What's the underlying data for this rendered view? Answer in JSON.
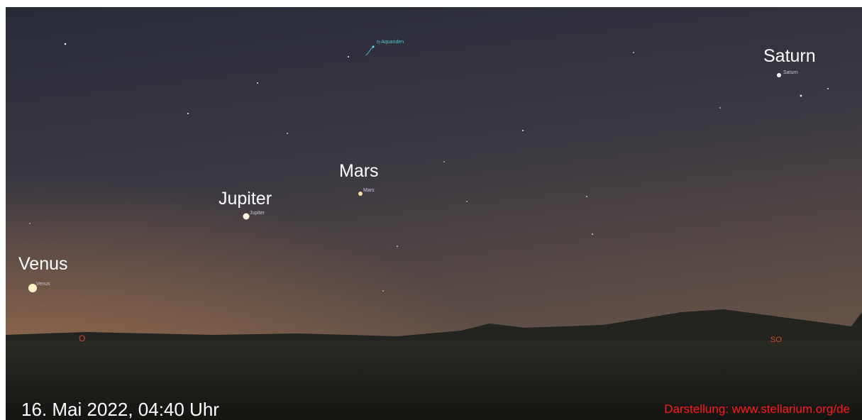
{
  "planets": [
    {
      "title": "Saturn",
      "label": "Saturn"
    },
    {
      "title": "Mars",
      "label": "Mars"
    },
    {
      "title": "Jupiter",
      "label": "Jupiter"
    },
    {
      "title": "Venus",
      "label": "Venus"
    }
  ],
  "meteor_shower": "η-Aquariden",
  "compass": [
    "O",
    "SO"
  ],
  "caption": "16. Mai 2022, 04:40 Uhr",
  "credit": "Darstellung: www.stellarium.org/de"
}
